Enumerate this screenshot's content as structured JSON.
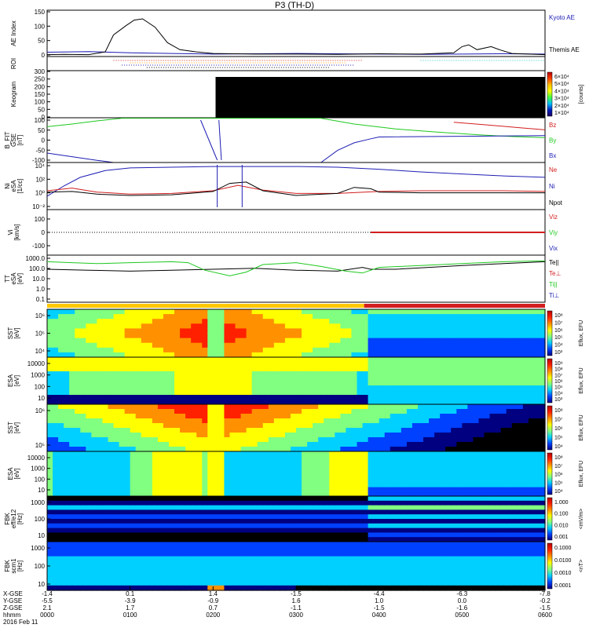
{
  "title": "P3 (TH-D)",
  "colors": {
    "ae_kyoto": "#1a1ab4",
    "ae_themis": "#000000",
    "bz": "#d21e1e",
    "by": "#1ec81e",
    "bx": "#1e1eb4",
    "ne": "#d21e1e",
    "ni": "#1e1eb4",
    "npot": "#000000",
    "vi_x": "#1e1eb4",
    "vi_y": "#1ec81e",
    "vi_z": "#d21e1e",
    "te_par": "#000000",
    "te_perp": "#d21e1e",
    "ti_par": "#1ec81e",
    "ti_perp": "#1e1eb4",
    "mode_fast": "#ffc800",
    "mode_slow": "#d21e1e"
  },
  "chart_data": {
    "type": "line",
    "x_axis": {
      "hhmm": [
        "0000",
        "0100",
        "0200",
        "0300",
        "0400",
        "0500",
        "0600"
      ],
      "x_gse": [
        "-1.4",
        "0.1",
        "1.4",
        "-1.5",
        "-4.4",
        "-6.3",
        "-7.8"
      ],
      "y_gse": [
        "-5.5",
        "-3.9",
        "-0.9",
        "1.6",
        "1.0",
        "0.0",
        "-0.2"
      ],
      "z_gse": [
        "2.1",
        "1.7",
        "0.7",
        "-1.1",
        "-1.5",
        "-1.6",
        "-1.5"
      ],
      "row_labels": [
        "X-GSE",
        "Y-GSE",
        "Z-GSE",
        "hhmm"
      ],
      "date": "2016 Feb 11",
      "range_hours": [
        0,
        6
      ]
    },
    "panels": [
      {
        "id": "ae",
        "ylabel": [
          "AE Index"
        ],
        "ylim": [
          0,
          150
        ],
        "yticks": [
          "150",
          "100",
          "50",
          "0"
        ],
        "legend": [
          "Kyoto AE",
          "Themis AE"
        ],
        "series": [
          {
            "name": "Kyoto AE",
            "color_key": "ae_kyoto",
            "points": [
              [
                0,
                14
              ],
              [
                0.5,
                16
              ],
              [
                1.0,
                12
              ],
              [
                1.5,
                10
              ],
              [
                2.0,
                8
              ],
              [
                2.5,
                9
              ],
              [
                3.0,
                10
              ],
              [
                3.5,
                9
              ],
              [
                4.0,
                8
              ],
              [
                4.5,
                7
              ],
              [
                5.0,
                8
              ],
              [
                5.5,
                9
              ],
              [
                6.0,
                8
              ]
            ]
          },
          {
            "name": "Themis AE",
            "color_key": "ae_themis",
            "points": [
              [
                0,
                6
              ],
              [
                0.2,
                7
              ],
              [
                0.5,
                6
              ],
              [
                0.7,
                15
              ],
              [
                0.8,
                70
              ],
              [
                0.95,
                100
              ],
              [
                1.05,
                118
              ],
              [
                1.15,
                122
              ],
              [
                1.3,
                95
              ],
              [
                1.45,
                45
              ],
              [
                1.6,
                22
              ],
              [
                1.8,
                15
              ],
              [
                2.0,
                10
              ],
              [
                2.5,
                8
              ],
              [
                3.0,
                8
              ],
              [
                3.5,
                7
              ],
              [
                4.0,
                9
              ],
              [
                4.5,
                8
              ],
              [
                4.9,
                12
              ],
              [
                5.0,
                32
              ],
              [
                5.08,
                38
              ],
              [
                5.18,
                22
              ],
              [
                5.35,
                32
              ],
              [
                5.45,
                22
              ],
              [
                5.6,
                10
              ],
              [
                6.0,
                6
              ]
            ]
          }
        ]
      },
      {
        "id": "roi",
        "ylabel": [
          "ROI"
        ],
        "note": "region-of-interest flag bars"
      },
      {
        "id": "keogram",
        "ylabel": [
          "Keogram"
        ],
        "ylim": [
          0,
          300
        ],
        "yticks": [
          "300",
          "250",
          "200",
          "150",
          "100",
          "50",
          "0"
        ],
        "colorbar": {
          "labels": [
            "6×10⁴",
            "5×10⁴",
            "4×10⁴",
            "3×10⁴",
            "2×10⁴",
            "1×10⁴"
          ],
          "title": "[counts]"
        },
        "dark_interval_hours": [
          2.03,
          6.0
        ]
      },
      {
        "id": "bfit",
        "ylabel": [
          "B_FIT",
          "GSE",
          "[nT]"
        ],
        "ylim": [
          -100,
          100
        ],
        "yticks": [
          "100",
          "50",
          "0",
          "-50",
          "-100"
        ],
        "legend": [
          "Bz",
          "By",
          "Bx"
        ],
        "series": [
          {
            "name": "Bz",
            "color_key": "bz",
            "points": [
              [
                4.9,
                80
              ],
              [
                5.3,
                68
              ],
              [
                5.7,
                55
              ],
              [
                6.0,
                46
              ]
            ]
          },
          {
            "name": "By",
            "color_key": "by",
            "points": [
              [
                0,
                60
              ],
              [
                0.3,
                72
              ],
              [
                0.6,
                86
              ],
              [
                0.9,
                98
              ],
              [
                3.3,
                98
              ],
              [
                3.7,
                72
              ],
              [
                4.2,
                50
              ],
              [
                4.7,
                36
              ],
              [
                5.2,
                24
              ],
              [
                5.6,
                16
              ],
              [
                6.0,
                11
              ]
            ]
          },
          {
            "name": "Bx",
            "color_key": "bx",
            "points": [
              [
                0,
                -58
              ],
              [
                0.3,
                -74
              ],
              [
                0.6,
                -90
              ],
              [
                0.8,
                -100
              ],
              [
                3.3,
                -100
              ],
              [
                3.5,
                -46
              ],
              [
                3.7,
                -12
              ],
              [
                3.9,
                6
              ],
              [
                4.0,
                14
              ],
              [
                6.0,
                20
              ]
            ]
          }
        ]
      },
      {
        "id": "density",
        "ylabel": [
          "Ni",
          "eSA",
          "[1/cc]"
        ],
        "ylim_log": [
          -3,
          4
        ],
        "yticks": [
          "10⁴",
          "10²",
          "10⁰",
          "10⁻²"
        ],
        "legend": [
          "Ne",
          "Ni",
          "Npot"
        ],
        "series": [
          {
            "name": "Ni",
            "color_key": "ni",
            "points": [
              [
                0,
                -1
              ],
              [
                0.2,
                0.5
              ],
              [
                0.4,
                1.8
              ],
              [
                0.7,
                2.8
              ],
              [
                1.0,
                3.2
              ],
              [
                1.5,
                3.3
              ],
              [
                2.0,
                3.4
              ],
              [
                2.5,
                3.4
              ],
              [
                3.0,
                3.4
              ],
              [
                3.5,
                3.3
              ],
              [
                4.0,
                3.0
              ],
              [
                4.5,
                2.6
              ],
              [
                5.0,
                2.3
              ],
              [
                5.5,
                2.0
              ],
              [
                6.0,
                1.8
              ]
            ]
          },
          {
            "name": "Ne",
            "color_key": "ne",
            "points": [
              [
                0,
                -0.2
              ],
              [
                0.3,
                0.2
              ],
              [
                0.6,
                -0.4
              ],
              [
                1.0,
                -0.7
              ],
              [
                1.5,
                -0.6
              ],
              [
                2.0,
                -0.2
              ],
              [
                2.3,
                0.6
              ],
              [
                2.6,
                -0.1
              ],
              [
                3.0,
                -0.6
              ],
              [
                3.5,
                -0.6
              ],
              [
                4.0,
                -0.3
              ],
              [
                4.5,
                -0.2
              ],
              [
                5.0,
                -0.2
              ],
              [
                5.5,
                -0.2
              ],
              [
                6.0,
                -0.3
              ]
            ]
          },
          {
            "name": "Npot",
            "color_key": "npot",
            "points": [
              [
                0,
                -0.4
              ],
              [
                0.3,
                -0.3
              ],
              [
                0.6,
                -0.7
              ],
              [
                1.0,
                -0.9
              ],
              [
                1.5,
                -0.8
              ],
              [
                2.0,
                -0.3
              ],
              [
                2.2,
                0.9
              ],
              [
                2.4,
                1.1
              ],
              [
                2.6,
                -0.2
              ],
              [
                3.0,
                -0.9
              ],
              [
                3.5,
                -0.6
              ],
              [
                3.7,
                0.3
              ],
              [
                3.9,
                0.1
              ],
              [
                4.0,
                -0.4
              ],
              [
                4.5,
                -0.5
              ],
              [
                5.0,
                -0.5
              ],
              [
                6.0,
                -0.5
              ]
            ]
          }
        ]
      },
      {
        "id": "velocity",
        "ylabel": [
          "Vi",
          "[km/s]"
        ],
        "ylim": [
          -150,
          150
        ],
        "yticks": [
          "100",
          "0",
          "-100"
        ],
        "legend": [
          "Viz",
          "Viy",
          "Vix"
        ],
        "series": [
          {
            "name": "Viz",
            "color_key": "vi_z",
            "points": [
              [
                3.9,
                0
              ],
              [
                6.0,
                0
              ]
            ]
          }
        ]
      },
      {
        "id": "temperature",
        "ylabel": [
          "TT",
          "eSA",
          "[eV]"
        ],
        "ylim_log": [
          -1,
          4
        ],
        "yticks": [
          "1000.0",
          "100.0",
          "10.0",
          "1.0",
          "0.1"
        ],
        "legend": [
          "Te||",
          "Te⊥",
          "Ti||",
          "Ti⊥"
        ],
        "series": [
          {
            "name": "Te||",
            "color_key": "te_par",
            "points": [
              [
                0,
                2.5
              ],
              [
                0.5,
                2.4
              ],
              [
                1.0,
                2.3
              ],
              [
                1.5,
                2.4
              ],
              [
                2.0,
                2.5
              ],
              [
                2.5,
                2.6
              ],
              [
                3.0,
                2.4
              ],
              [
                3.5,
                2.3
              ],
              [
                3.8,
                2.7
              ],
              [
                3.9,
                2.5
              ],
              [
                4.2,
                2.5
              ],
              [
                4.6,
                2.7
              ],
              [
                5.0,
                2.9
              ],
              [
                5.5,
                3.1
              ],
              [
                6.0,
                3.3
              ]
            ]
          },
          {
            "name": "Ti||",
            "color_key": "ti_par",
            "points": [
              [
                0,
                3.3
              ],
              [
                0.3,
                3.2
              ],
              [
                0.6,
                3.1
              ],
              [
                1.0,
                3.2
              ],
              [
                1.5,
                3.3
              ],
              [
                1.7,
                3.2
              ],
              [
                1.9,
                2.4
              ],
              [
                2.2,
                1.8
              ],
              [
                2.4,
                2.2
              ],
              [
                2.6,
                3.0
              ],
              [
                3.0,
                3.2
              ],
              [
                3.3,
                2.8
              ],
              [
                3.6,
                2.3
              ],
              [
                3.8,
                2.1
              ],
              [
                4.0,
                2.7
              ],
              [
                4.5,
                2.9
              ],
              [
                5.0,
                3.1
              ],
              [
                5.5,
                3.3
              ],
              [
                6.0,
                3.4
              ]
            ]
          }
        ]
      },
      {
        "id": "mode_bar",
        "note": "fast/slow survey mode indicator",
        "fast_hours": [
          0,
          3.82
        ],
        "slow_hours": [
          3.82,
          6.0
        ]
      },
      {
        "id": "sst_e",
        "ylabel": [
          "SST",
          "[eV]"
        ],
        "yticks": [
          "10⁶",
          "10⁵",
          "10⁴"
        ],
        "colorbar": {
          "labels": [
            "10⁸",
            "10⁷",
            "10⁶",
            "10⁵",
            "10⁴",
            "10³"
          ],
          "title": "Eflux, EFU"
        }
      },
      {
        "id": "esa_e",
        "ylabel": [
          "ESA",
          "[eV]"
        ],
        "yticks": [
          "10000",
          "1000",
          "100",
          "10"
        ],
        "colorbar": {
          "labels": [
            "10⁹",
            "10⁸",
            "10⁷",
            "10⁶",
            "10⁵",
            "10⁴",
            "10³"
          ],
          "title": "Eflux, EFU"
        }
      },
      {
        "id": "sst_i",
        "ylabel": [
          "SST",
          "[eV]"
        ],
        "yticks": [
          "10⁶",
          "10⁵"
        ],
        "colorbar": {
          "labels": [
            "10⁸",
            "10⁷",
            "10⁶",
            "10⁵",
            "10⁴"
          ],
          "title": "Eflux, EFU"
        }
      },
      {
        "id": "esa_i",
        "ylabel": [
          "ESA",
          "[eV]"
        ],
        "yticks": [
          "10000",
          "1000",
          "100",
          "10"
        ],
        "colorbar": {
          "labels": [
            "10⁸",
            "10⁷",
            "10⁶",
            "10⁵",
            "10⁴"
          ],
          "title": "Eflux, EFU"
        }
      },
      {
        "id": "fbk_e",
        "ylabel": [
          "FBK",
          "eff/e12",
          "[Hz]"
        ],
        "yticks": [
          "1000",
          "100",
          "10"
        ],
        "colorbar": {
          "labels": [
            "1.000",
            "0.100",
            "0.010",
            "0.001"
          ],
          "title": "<mV/m>"
        }
      },
      {
        "id": "fbk_b",
        "ylabel": [
          "FBK",
          "scm1",
          "[Hz]"
        ],
        "yticks": [
          "1000",
          "100",
          "10"
        ],
        "colorbar": {
          "labels": [
            "0.1000",
            "0.0100",
            "0.0010",
            "0.0001"
          ],
          "title": "<nT>"
        }
      }
    ]
  }
}
